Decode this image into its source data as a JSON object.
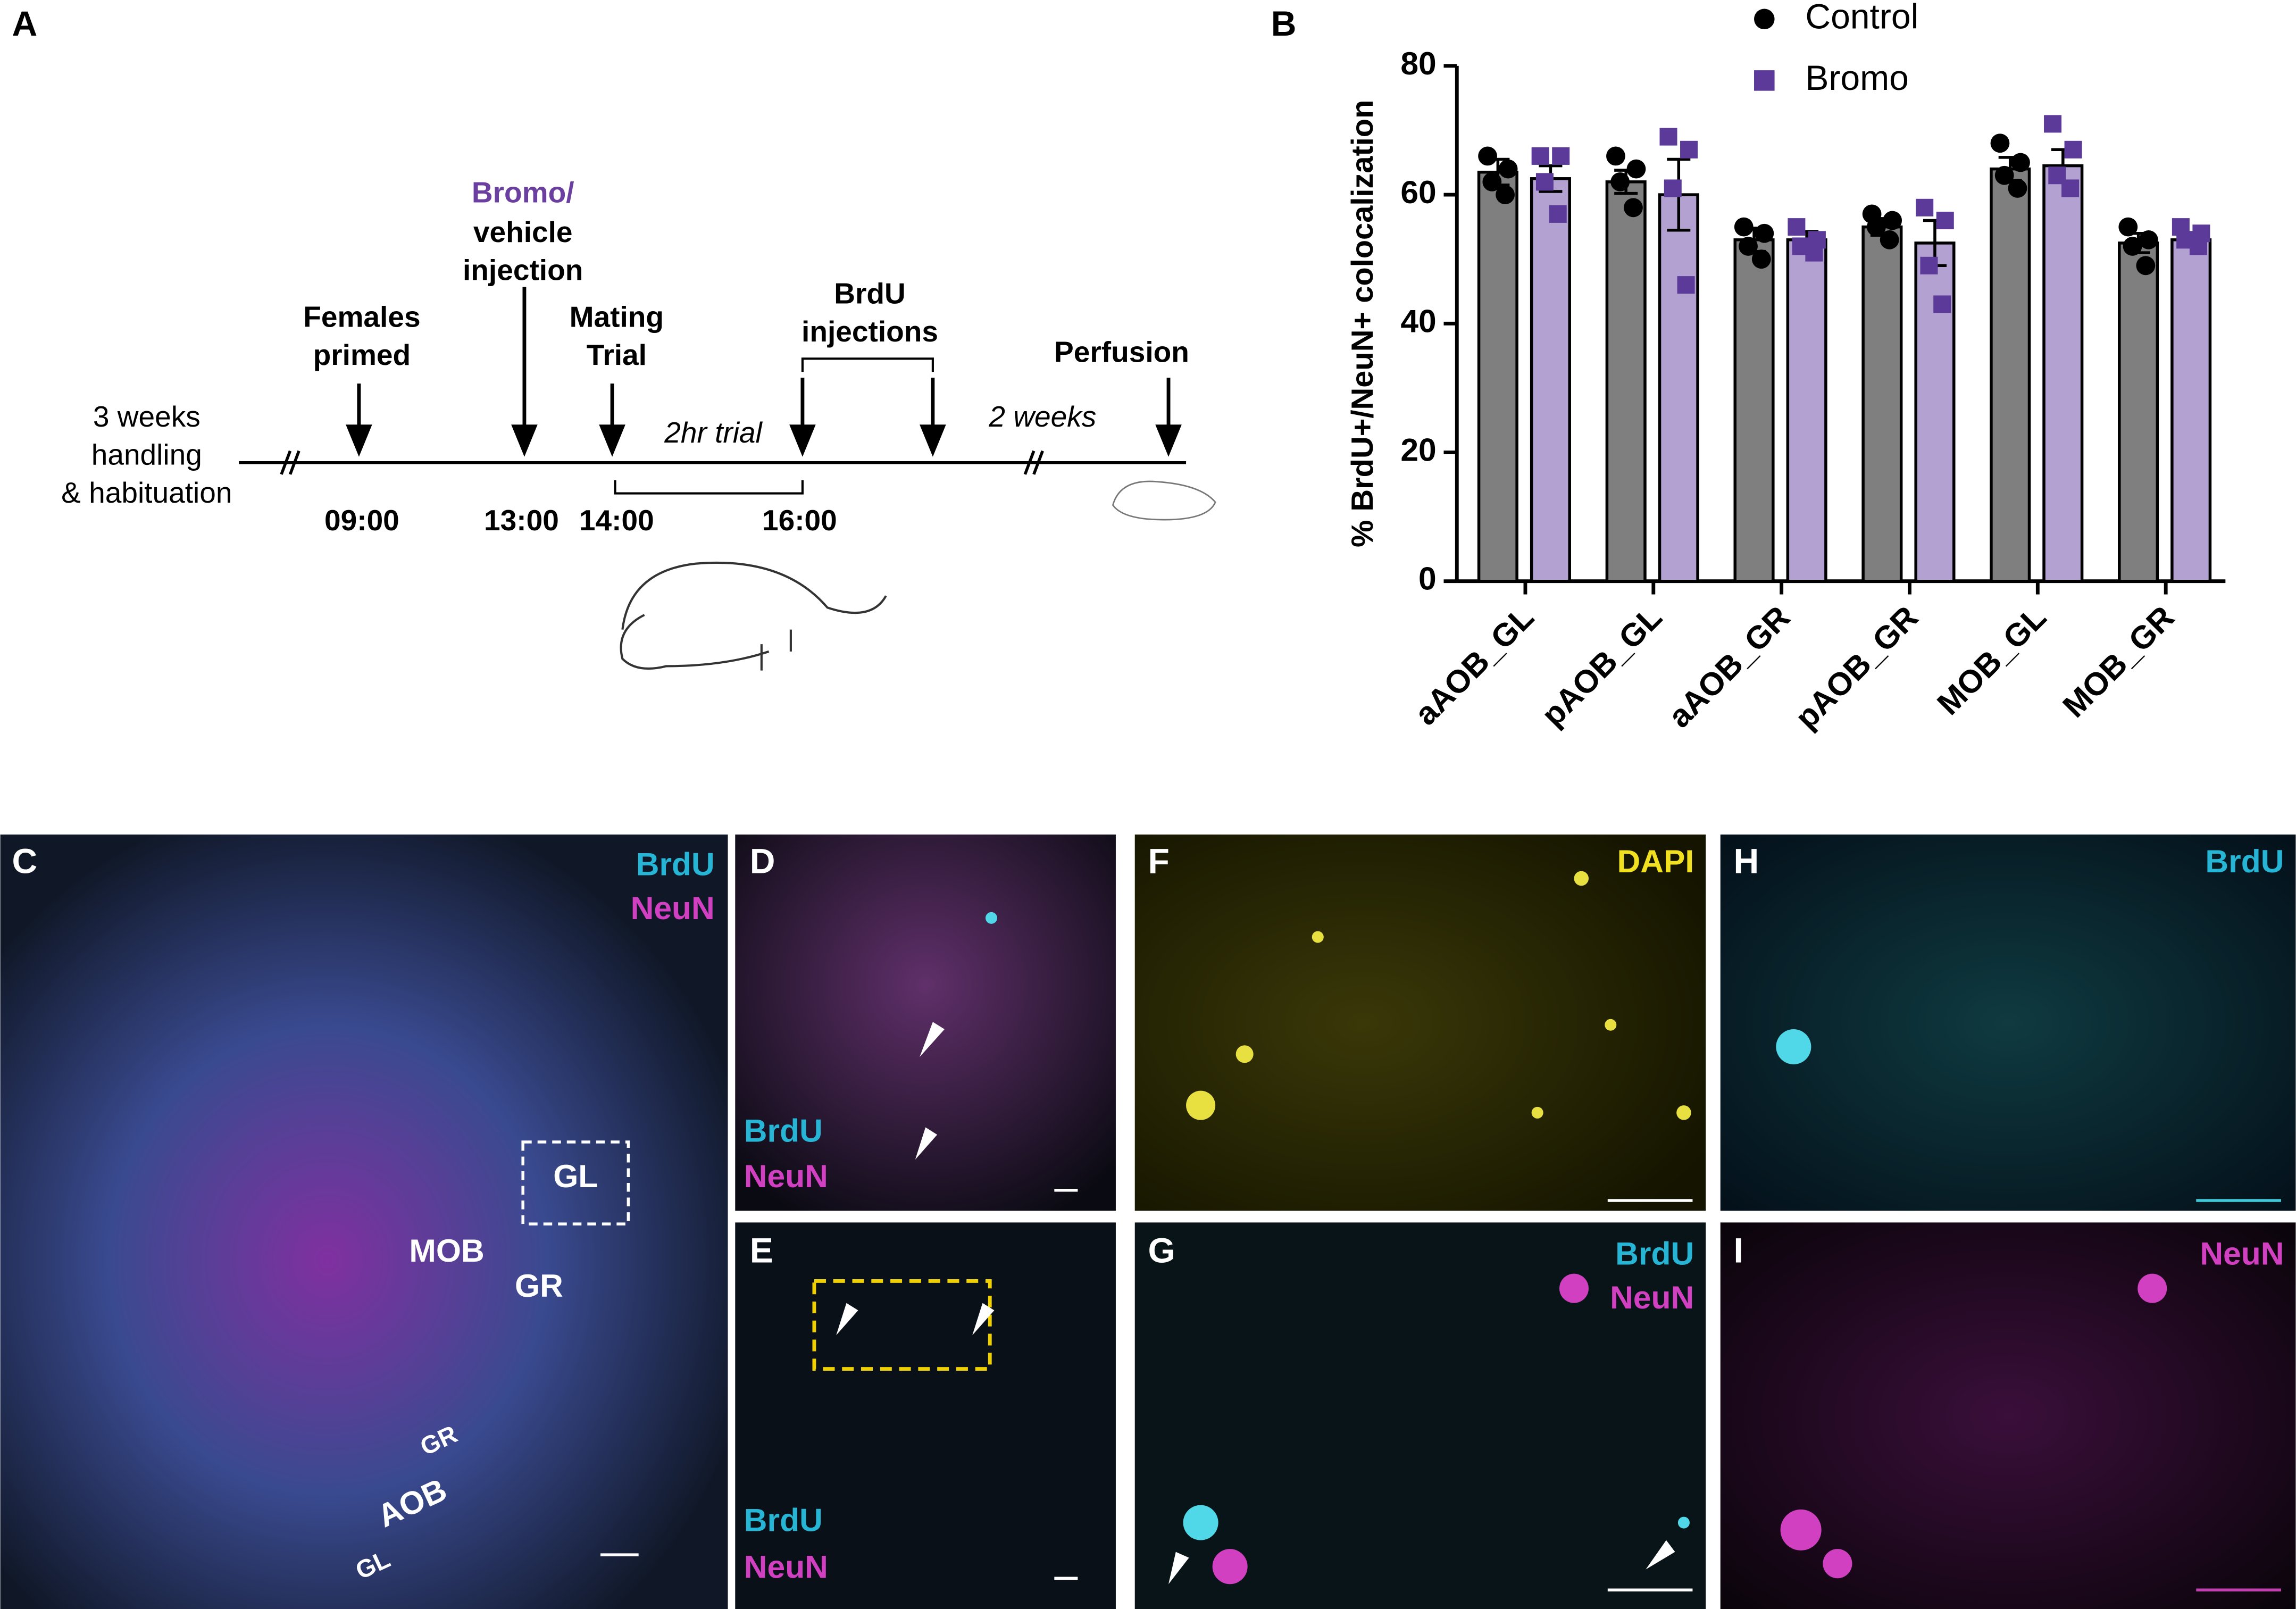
{
  "timeline": {
    "panel": "A",
    "handling": [
      "3 weeks",
      "handling",
      "& habituation"
    ],
    "primed": [
      "Females",
      "primed"
    ],
    "injection": [
      "Bromo/",
      "vehicle",
      "injection"
    ],
    "mating": [
      "Mating",
      "Trial"
    ],
    "trial": "2hr trial",
    "brdu": [
      "BrdU",
      "injections"
    ],
    "interval": "2 weeks",
    "perfusion": "Perfusion",
    "times": [
      "09:00",
      "13:00",
      "14:00",
      "16:00"
    ]
  },
  "chart_data": {
    "type": "bar",
    "panel": "B",
    "ylabel": "% BrdU+/NeuN+ colocalization",
    "categories": [
      "aAOB_GL",
      "pAOB_GL",
      "aAOB_GR",
      "pAOB_GR",
      "MOB_GL",
      "MOB_GR"
    ],
    "ylim": [
      0,
      80
    ],
    "yticks": [
      0,
      20,
      40,
      60,
      80
    ],
    "series": [
      {
        "name": "Control",
        "color": "#7f7f7f",
        "marker_color": "#000000",
        "marker": "circle",
        "values": [
          63.5,
          62,
          53,
          55,
          64,
          52.5
        ],
        "errors": [
          2,
          1.8,
          1.8,
          1.3,
          1.8,
          1.5
        ],
        "points": [
          [
            66,
            64,
            62,
            60
          ],
          [
            66,
            64,
            62,
            58
          ],
          [
            55,
            54,
            52,
            50
          ],
          [
            57,
            56,
            55,
            53
          ],
          [
            68,
            65,
            63,
            61
          ],
          [
            55,
            53,
            52,
            49
          ]
        ]
      },
      {
        "name": "Bromo",
        "color": "#b3a1d1",
        "marker_color": "#5b3a99",
        "marker": "square",
        "values": [
          62.5,
          60,
          53,
          52.5,
          64.5,
          53
        ],
        "errors": [
          2,
          5.5,
          1.3,
          3.5,
          2.5,
          1
        ],
        "points": [
          [
            66,
            66,
            62,
            57
          ],
          [
            69,
            67,
            61,
            46
          ],
          [
            55,
            53,
            52,
            51
          ],
          [
            58,
            56,
            49,
            43
          ],
          [
            71,
            67,
            63,
            61
          ],
          [
            55,
            54,
            53,
            52
          ]
        ]
      }
    ]
  },
  "micrographs": {
    "C": {
      "label": "C",
      "channels": [
        "BrdU",
        "NeuN"
      ],
      "regions": [
        "GL",
        "MOB",
        "GR",
        "AOB",
        "GR",
        "GL"
      ]
    },
    "D": {
      "label": "D",
      "channels": [
        "BrdU",
        "NeuN"
      ]
    },
    "E": {
      "label": "E",
      "channels": [
        "BrdU",
        "NeuN"
      ]
    },
    "F": {
      "label": "F",
      "channels": [
        "DAPI"
      ]
    },
    "G": {
      "label": "G",
      "channels": [
        "BrdU",
        "NeuN"
      ]
    },
    "H": {
      "label": "H",
      "channels": [
        "BrdU"
      ]
    },
    "I": {
      "label": "I",
      "channels": [
        "NeuN"
      ]
    }
  }
}
